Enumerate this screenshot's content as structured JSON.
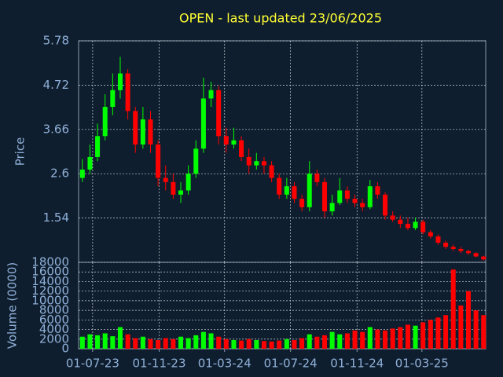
{
  "chart_data": [
    {
      "type": "candlestick",
      "title": "OPEN - last updated 23/06/2025",
      "ylabel": "Price",
      "x": [
        "2023-06-12",
        "2023-06-26",
        "2023-07-10",
        "2023-07-24",
        "2023-08-07",
        "2023-08-21",
        "2023-09-04",
        "2023-09-18",
        "2023-10-02",
        "2023-10-16",
        "2023-10-30",
        "2023-11-13",
        "2023-11-27",
        "2023-12-11",
        "2023-12-25",
        "2024-01-08",
        "2024-01-22",
        "2024-02-05",
        "2024-02-19",
        "2024-03-04",
        "2024-03-18",
        "2024-04-01",
        "2024-04-15",
        "2024-04-29",
        "2024-05-13",
        "2024-05-27",
        "2024-06-10",
        "2024-06-24",
        "2024-07-08",
        "2024-07-22",
        "2024-08-05",
        "2024-08-19",
        "2024-09-02",
        "2024-09-16",
        "2024-09-30",
        "2024-10-14",
        "2024-10-28",
        "2024-11-11",
        "2024-11-25",
        "2024-12-09",
        "2024-12-23",
        "2025-01-06",
        "2025-01-20",
        "2025-02-03",
        "2025-02-17",
        "2025-03-03",
        "2025-03-17",
        "2025-03-31",
        "2025-04-14",
        "2025-04-28",
        "2025-05-12",
        "2025-05-26",
        "2025-06-09",
        "2025-06-23"
      ],
      "open": [
        2.5,
        2.7,
        3.0,
        3.5,
        4.2,
        4.6,
        5.0,
        4.1,
        3.3,
        3.9,
        3.3,
        2.5,
        2.4,
        2.1,
        2.2,
        2.6,
        3.2,
        4.4,
        4.6,
        3.5,
        3.3,
        3.4,
        3.0,
        2.8,
        2.9,
        2.8,
        2.5,
        2.1,
        2.3,
        2.0,
        1.8,
        2.6,
        2.4,
        1.7,
        1.9,
        2.2,
        2.0,
        1.9,
        1.8,
        2.3,
        2.1,
        1.6,
        1.5,
        1.4,
        1.3,
        1.45,
        1.2,
        1.1,
        0.95,
        0.85,
        0.8,
        0.75,
        0.7,
        0.62
      ],
      "high": [
        2.95,
        3.3,
        3.8,
        4.5,
        5.0,
        5.4,
        5.1,
        4.2,
        4.2,
        4.1,
        3.4,
        2.8,
        2.6,
        2.4,
        2.8,
        3.4,
        4.9,
        4.8,
        4.7,
        3.7,
        3.7,
        3.5,
        3.2,
        3.1,
        3.0,
        2.9,
        2.6,
        2.5,
        2.4,
        2.1,
        2.9,
        2.7,
        2.5,
        2.1,
        2.5,
        2.3,
        2.1,
        2.0,
        2.45,
        2.4,
        2.15,
        1.7,
        1.6,
        1.55,
        1.55,
        1.5,
        1.25,
        1.15,
        1.0,
        0.9,
        0.85,
        0.78,
        0.72,
        0.64
      ],
      "low": [
        2.4,
        2.6,
        2.9,
        3.4,
        4.0,
        4.4,
        3.9,
        3.1,
        3.2,
        3.1,
        2.3,
        2.2,
        2.0,
        1.9,
        2.1,
        2.5,
        3.1,
        4.2,
        3.3,
        3.1,
        3.2,
        2.9,
        2.6,
        2.7,
        2.6,
        2.4,
        2.0,
        2.0,
        1.9,
        1.7,
        1.7,
        2.3,
        1.55,
        1.6,
        1.85,
        1.9,
        1.8,
        1.7,
        1.75,
        2.0,
        1.5,
        1.45,
        1.3,
        1.25,
        1.25,
        1.15,
        1.05,
        0.9,
        0.8,
        0.75,
        0.7,
        0.66,
        0.6,
        0.52
      ],
      "close": [
        2.7,
        3.0,
        3.5,
        4.2,
        4.6,
        5.0,
        4.1,
        3.3,
        3.9,
        3.3,
        2.5,
        2.4,
        2.1,
        2.2,
        2.6,
        3.2,
        4.4,
        4.6,
        3.5,
        3.3,
        3.4,
        3.0,
        2.8,
        2.9,
        2.8,
        2.5,
        2.1,
        2.3,
        2.0,
        1.8,
        2.6,
        2.4,
        1.7,
        1.9,
        2.2,
        2.0,
        1.9,
        1.8,
        2.3,
        2.1,
        1.6,
        1.5,
        1.4,
        1.3,
        1.45,
        1.2,
        1.1,
        0.95,
        0.85,
        0.8,
        0.75,
        0.7,
        0.62,
        0.55
      ],
      "xlim": [
        "2023-06-05",
        "2025-06-27"
      ],
      "ylim": [
        0.48,
        5.78
      ],
      "yticks": [
        1.54,
        2.6,
        3.66,
        4.72,
        5.78
      ],
      "up_color": "#00ff00",
      "down_color": "#ff0000",
      "grid": true
    },
    {
      "type": "bar",
      "ylabel": "Volume (0000)",
      "values": [
        2500,
        3000,
        2800,
        3200,
        2600,
        4500,
        3000,
        2200,
        2500,
        2000,
        1800,
        2200,
        2000,
        2500,
        2200,
        2800,
        3500,
        3200,
        2500,
        2000,
        1800,
        1700,
        2000,
        1800,
        1600,
        1500,
        1700,
        2000,
        1800,
        2200,
        3000,
        2500,
        2800,
        3500,
        3000,
        3200,
        3800,
        3500,
        4500,
        4000,
        3800,
        4200,
        4500,
        5000,
        4800,
        5500,
        6000,
        6500,
        7000,
        16500,
        9000,
        12000,
        8000,
        7000
      ],
      "ylim": [
        0,
        18000
      ],
      "yticks": [
        0,
        2000,
        4000,
        6000,
        8000,
        10000,
        12000,
        14000,
        16000,
        18000
      ],
      "xticks": [
        {
          "value": "2023-07-01",
          "label": "01-07-23"
        },
        {
          "value": "2023-11-01",
          "label": "01-11-23"
        },
        {
          "value": "2024-03-01",
          "label": "01-03-24"
        },
        {
          "value": "2024-07-01",
          "label": "01-07-24"
        },
        {
          "value": "2024-11-01",
          "label": "01-11-24"
        },
        {
          "value": "2025-03-01",
          "label": "01-03-25"
        }
      ],
      "grid": true
    }
  ]
}
